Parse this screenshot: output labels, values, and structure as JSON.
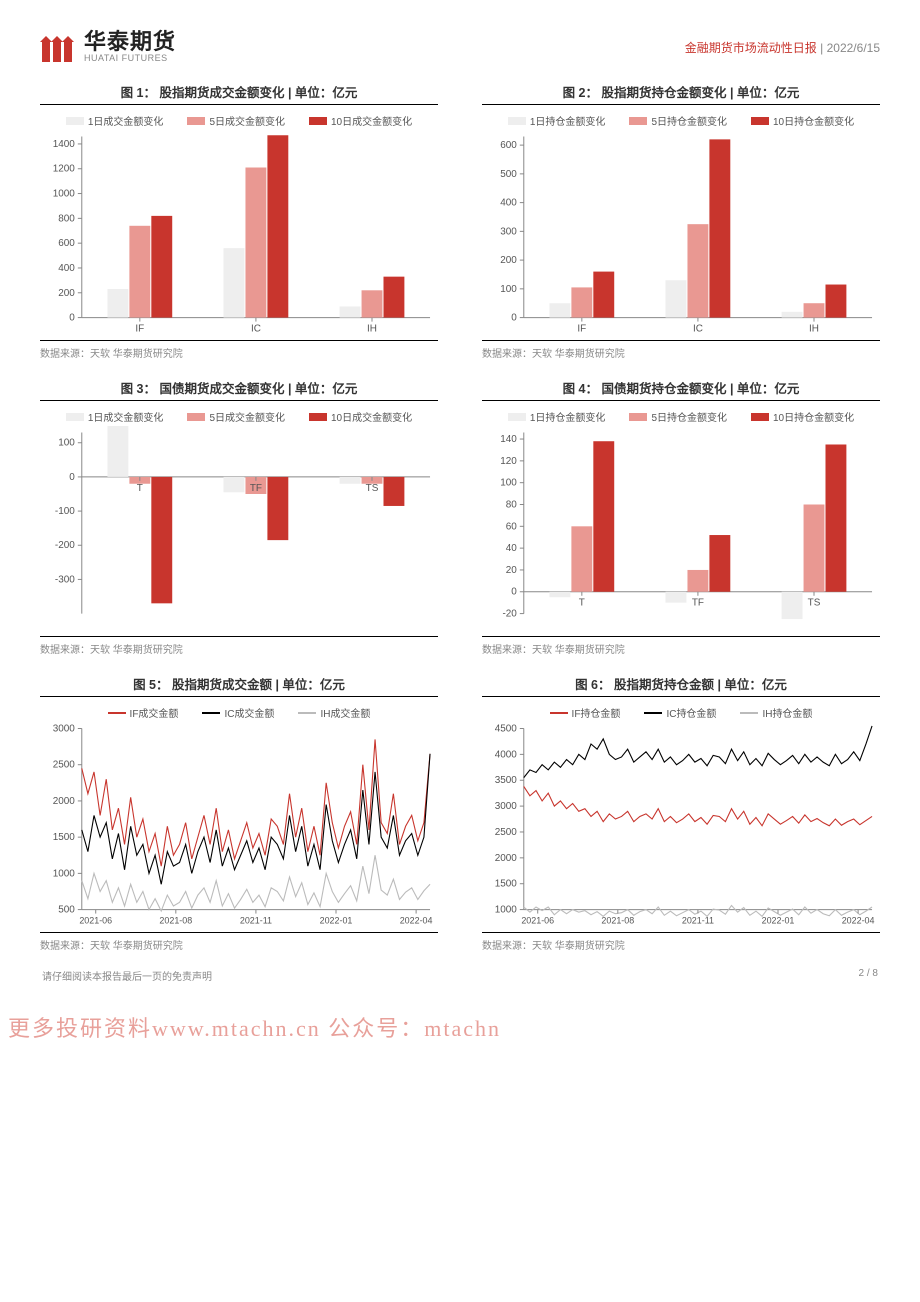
{
  "header": {
    "logo_cn": "华泰期货",
    "logo_en": "HUATAI FUTURES",
    "report_title": "金融期货市场流动性日报",
    "date": "2022/6/15"
  },
  "colors": {
    "pale": "#eeeeee",
    "mid": "#e99892",
    "dark": "#c8352d",
    "black": "#000000",
    "grey": "#bbbbbb",
    "axis": "#888888",
    "tick_font": 10
  },
  "legend_bar": [
    "1日成交金额变化",
    "5日成交金额变化",
    "10日成交金额变化"
  ],
  "legend_bar_hold": [
    "1日持仓金额变化",
    "5日持仓金额变化",
    "10日持仓金额变化"
  ],
  "legend_line5": [
    "IF成交金额",
    "IC成交金额",
    "IH成交金额"
  ],
  "legend_line6": [
    "IF持仓金额",
    "IC持仓金额",
    "IH持仓金额"
  ],
  "source_text": "数据来源：天软  华泰期货研究院",
  "chart1": {
    "title": "图 1：    股指期货成交金额变化  | 单位：亿元",
    "categories": [
      "IF",
      "IC",
      "IH"
    ],
    "series": [
      [
        230,
        560,
        90
      ],
      [
        740,
        1210,
        220
      ],
      [
        820,
        1470,
        330
      ]
    ],
    "ylim": [
      0,
      1400
    ],
    "ystep": 200
  },
  "chart2": {
    "title": "图 2：    股指期货持仓金额变化  | 单位：亿元",
    "categories": [
      "IF",
      "IC",
      "IH"
    ],
    "series": [
      [
        50,
        130,
        20
      ],
      [
        105,
        325,
        50
      ],
      [
        160,
        620,
        115
      ]
    ],
    "ylim": [
      0,
      600
    ],
    "ystep": 100
  },
  "chart3": {
    "title": "图 3：    国债期货成交金额变化  | 单位：亿元",
    "categories": [
      "T",
      "TF",
      "TS"
    ],
    "series": [
      [
        150,
        -45,
        -20
      ],
      [
        -20,
        -50,
        -20
      ],
      [
        -370,
        -185,
        -85
      ]
    ],
    "ylim": [
      -300,
      100
    ],
    "ystep": 100,
    "ymin_ext": -400
  },
  "chart4": {
    "title": "图 4：    国债期货持仓金额变化  | 单位：亿元",
    "categories": [
      "T",
      "TF",
      "TS"
    ],
    "series": [
      [
        -5,
        -10,
        -25
      ],
      [
        60,
        20,
        80
      ],
      [
        138,
        52,
        135
      ]
    ],
    "ylim": [
      -20,
      140
    ],
    "ystep": 20
  },
  "chart5": {
    "title": "图 5：    股指期货成交金额  | 单位：亿元",
    "xticks": [
      "2021-06",
      "2021-08",
      "2021-11",
      "2022-01",
      "2022-04"
    ],
    "ylim": [
      500,
      3000
    ],
    "ystep": 500,
    "colors": [
      "#c8352d",
      "#000000",
      "#bbbbbb"
    ],
    "series": {
      "IF": [
        2450,
        2100,
        2400,
        1800,
        2300,
        1600,
        1900,
        1400,
        2050,
        1500,
        1750,
        1300,
        1550,
        1100,
        1650,
        1250,
        1400,
        1700,
        1200,
        1500,
        1800,
        1400,
        1900,
        1300,
        1600,
        1200,
        1450,
        1700,
        1350,
        1550,
        1250,
        1750,
        1650,
        1400,
        2100,
        1500,
        1900,
        1300,
        1650,
        1250,
        2250,
        1700,
        1350,
        1650,
        1850,
        1400,
        2500,
        1600,
        2850,
        1700,
        1550,
        2100,
        1400,
        1650,
        1800,
        1450,
        1700,
        2650
      ],
      "IC": [
        1600,
        1300,
        1800,
        1500,
        1700,
        1200,
        1550,
        1050,
        1650,
        1250,
        1400,
        1000,
        1250,
        850,
        1300,
        1100,
        1150,
        1400,
        1000,
        1300,
        1500,
        1150,
        1600,
        1100,
        1350,
        1050,
        1250,
        1450,
        1150,
        1350,
        1050,
        1500,
        1400,
        1200,
        1800,
        1300,
        1650,
        1100,
        1400,
        1050,
        1950,
        1450,
        1150,
        1400,
        1600,
        1200,
        2150,
        1400,
        2400,
        1500,
        1350,
        1800,
        1250,
        1450,
        1550,
        1250,
        1500,
        2650
      ],
      "IH": [
        900,
        650,
        1000,
        750,
        900,
        600,
        800,
        550,
        850,
        600,
        750,
        500,
        650,
        480,
        700,
        550,
        600,
        750,
        520,
        700,
        800,
        600,
        900,
        550,
        720,
        520,
        640,
        780,
        600,
        700,
        540,
        800,
        750,
        620,
        950,
        680,
        870,
        570,
        730,
        540,
        1000,
        750,
        600,
        720,
        830,
        620,
        1100,
        720,
        1250,
        770,
        700,
        920,
        640,
        740,
        800,
        640,
        760,
        850
      ]
    }
  },
  "chart6": {
    "title": "图 6：    股指期货持仓金额  | 单位：亿元",
    "xticks": [
      "2021-06",
      "2021-08",
      "2021-11",
      "2022-01",
      "2022-04"
    ],
    "ylim": [
      1000,
      4500
    ],
    "ystep": 500,
    "colors": [
      "#c8352d",
      "#000000",
      "#bbbbbb"
    ],
    "series": {
      "IF": [
        3380,
        3200,
        3300,
        3100,
        3250,
        3000,
        3100,
        2950,
        3050,
        2900,
        2950,
        2800,
        2900,
        2700,
        2850,
        2750,
        2800,
        2900,
        2700,
        2800,
        2850,
        2750,
        2950,
        2700,
        2800,
        2680,
        2750,
        2850,
        2700,
        2780,
        2650,
        2820,
        2800,
        2700,
        2950,
        2750,
        2900,
        2650,
        2780,
        2620,
        2850,
        2750,
        2650,
        2720,
        2800,
        2670,
        2830,
        2700,
        2760,
        2680,
        2620,
        2750,
        2630,
        2700,
        2750,
        2640,
        2720,
        2800
      ],
      "IC": [
        3550,
        3700,
        3650,
        3800,
        3700,
        3850,
        3750,
        3900,
        3800,
        4000,
        3900,
        4200,
        4100,
        4300,
        4000,
        3900,
        3950,
        4100,
        3850,
        3950,
        4050,
        3900,
        4100,
        3850,
        3950,
        3800,
        3880,
        4000,
        3850,
        3920,
        3780,
        3980,
        3950,
        3820,
        4100,
        3880,
        4050,
        3800,
        3920,
        3780,
        4020,
        3900,
        3800,
        3880,
        3980,
        3820,
        4000,
        3850,
        3950,
        3850,
        3780,
        4000,
        3820,
        3900,
        4050,
        3880,
        4200,
        4550
      ],
      "IH": [
        1050,
        950,
        1050,
        980,
        1050,
        900,
        1000,
        920,
        1000,
        950,
        980,
        900,
        960,
        870,
        970,
        920,
        940,
        1000,
        890,
        960,
        1000,
        920,
        1050,
        890,
        970,
        880,
        940,
        1000,
        910,
        970,
        870,
        1010,
        990,
        910,
        1080,
        950,
        1040,
        890,
        970,
        870,
        1030,
        960,
        890,
        950,
        1010,
        900,
        1050,
        930,
        1000,
        920,
        880,
        1000,
        890,
        950,
        1000,
        900,
        970,
        1050
      ]
    }
  },
  "footer": {
    "disclaimer": "请仔细阅读本报告最后一页的免责声明",
    "page": "2 / 8"
  },
  "watermark": "更多投研资料www.mtachn.cn 公众号：mtachn"
}
